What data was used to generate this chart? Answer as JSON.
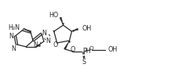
{
  "background": "#ffffff",
  "line_color": "#2a2a2a",
  "line_width": 0.9,
  "font_size": 5.8,
  "figsize": [
    2.46,
    1.05
  ],
  "dpi": 100,
  "xlim": [
    0,
    24.6
  ],
  "ylim": [
    0,
    10.5
  ]
}
